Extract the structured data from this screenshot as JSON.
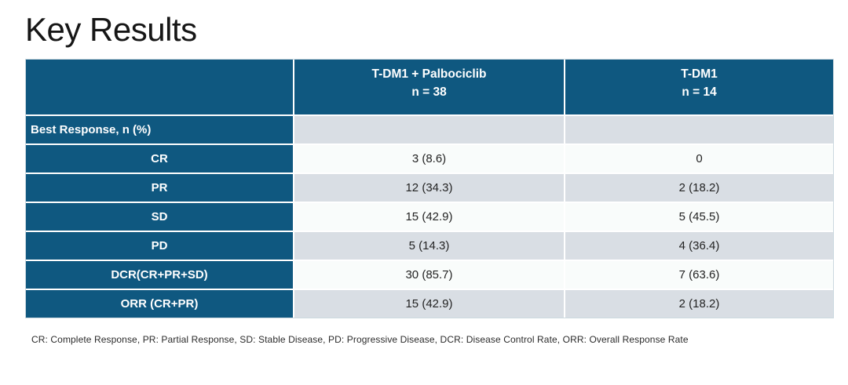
{
  "slide": {
    "title": "Key Results",
    "footnote": "CR: Complete Response, PR: Partial Response, SD: Stable Disease, PD: Progressive Disease, DCR: Disease Control Rate, ORR: Overall Response Rate"
  },
  "table": {
    "columns": [
      {
        "line1": "",
        "line2": ""
      },
      {
        "line1": "T-DM1 + Palbociclib",
        "line2": "n = 38"
      },
      {
        "line1": "T-DM1",
        "line2": "n = 14"
      }
    ],
    "rows": [
      {
        "label": "Best Response, n (%)",
        "c1": "",
        "c2": ""
      },
      {
        "label": "CR",
        "c1": "3 (8.6)",
        "c2": "0"
      },
      {
        "label": "PR",
        "c1": "12 (34.3)",
        "c2": "2 (18.2)"
      },
      {
        "label": "SD",
        "c1": "15 (42.9)",
        "c2": "5 (45.5)"
      },
      {
        "label": "PD",
        "c1": "5 (14.3)",
        "c2": "4 (36.4)"
      },
      {
        "label": "DCR(CR+PR+SD)",
        "c1": "30 (85.7)",
        "c2": "7 (63.6)"
      },
      {
        "label": "ORR (CR+PR)",
        "c1": "15 (42.9)",
        "c2": "2 (18.2)"
      }
    ]
  },
  "colors": {
    "header_blue": "#0f5880",
    "row_gray": "#d9dee4",
    "row_white": "#f9fcfb"
  }
}
